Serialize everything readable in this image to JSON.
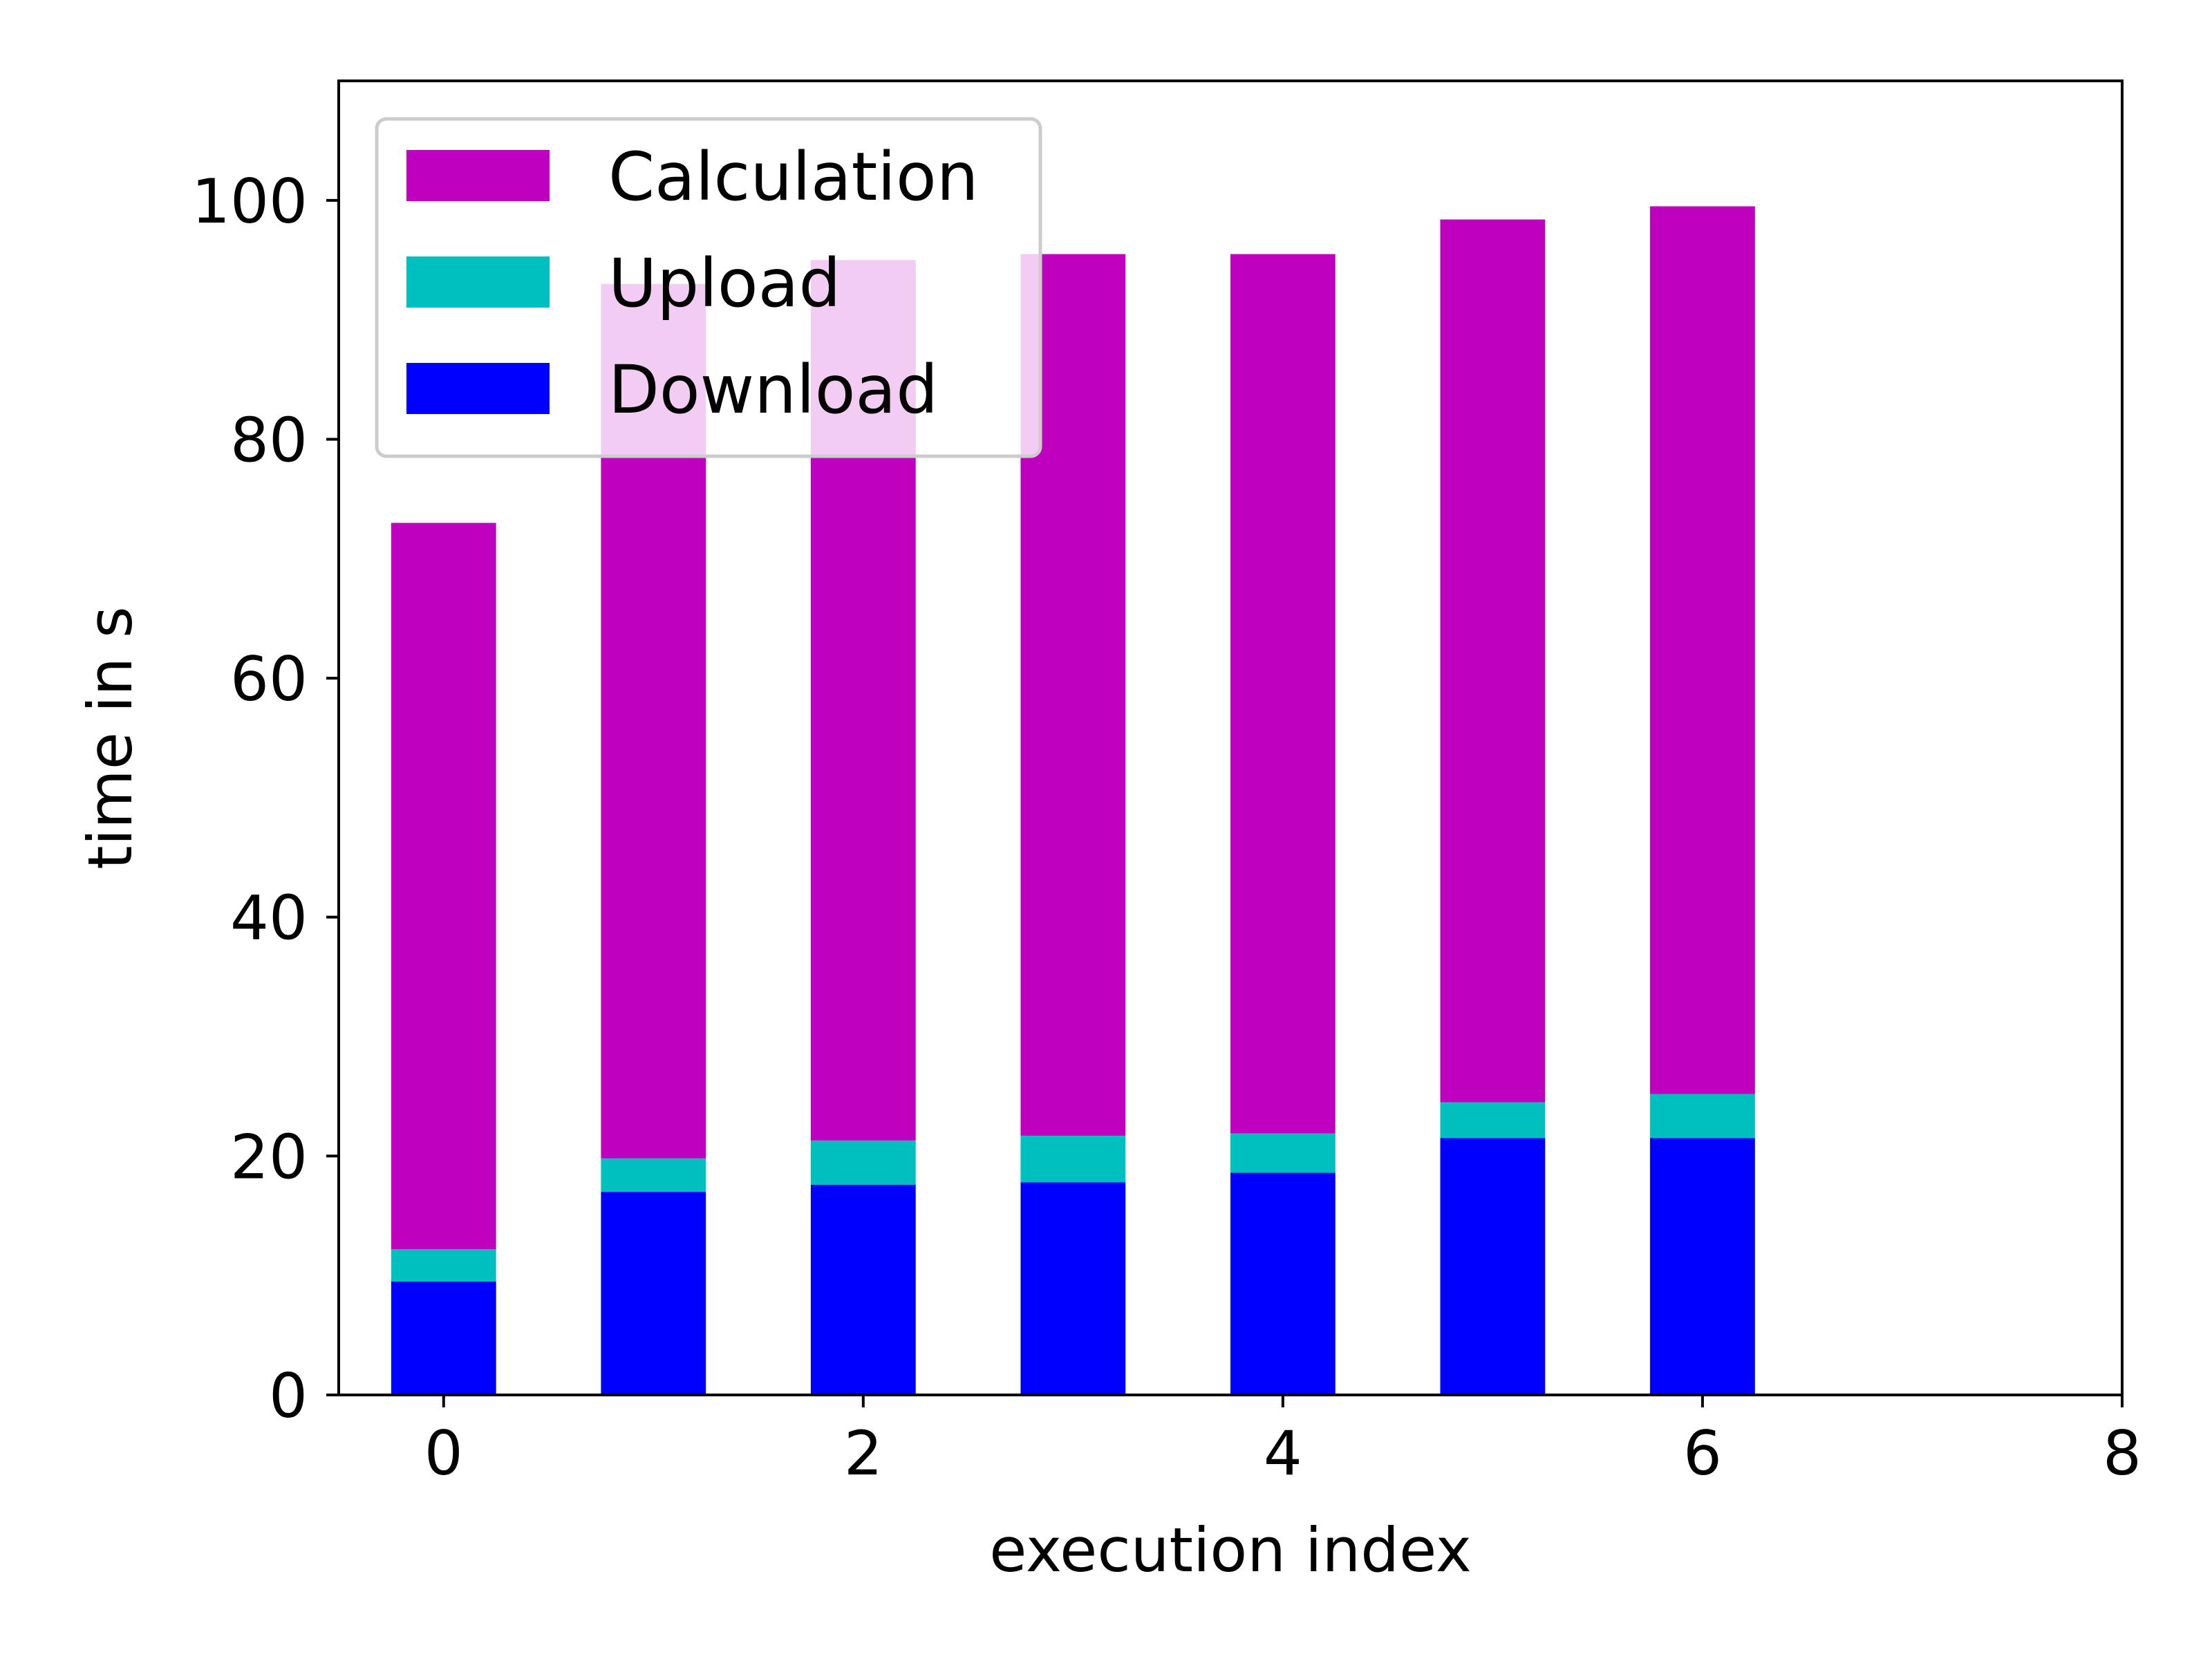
{
  "chart_data": {
    "type": "bar",
    "stacked": true,
    "x": [
      0,
      1,
      2,
      3,
      4,
      5,
      6
    ],
    "series": [
      {
        "name": "Download",
        "color": "#0000ff",
        "values": [
          9.5,
          17.0,
          17.6,
          17.8,
          18.6,
          21.5,
          21.5
        ]
      },
      {
        "name": "Upload",
        "color": "#00bfbf",
        "values": [
          2.7,
          2.8,
          3.7,
          3.9,
          3.3,
          3.0,
          3.7
        ]
      },
      {
        "name": "Calculation",
        "color": "#bf00bf",
        "values": [
          60.8,
          73.2,
          73.7,
          73.8,
          73.6,
          73.9,
          74.3
        ]
      }
    ],
    "legend_order": [
      "Calculation",
      "Upload",
      "Download"
    ],
    "legend_position": "upper-left",
    "xlabel": "execution index",
    "ylabel": "time in s",
    "xlim": [
      -0.5,
      8
    ],
    "ylim": [
      0,
      110
    ],
    "xticks": [
      0,
      2,
      4,
      6,
      8
    ],
    "yticks": [
      0,
      20,
      40,
      60,
      80,
      100
    ],
    "bar_width": 0.5,
    "grid": false
  }
}
